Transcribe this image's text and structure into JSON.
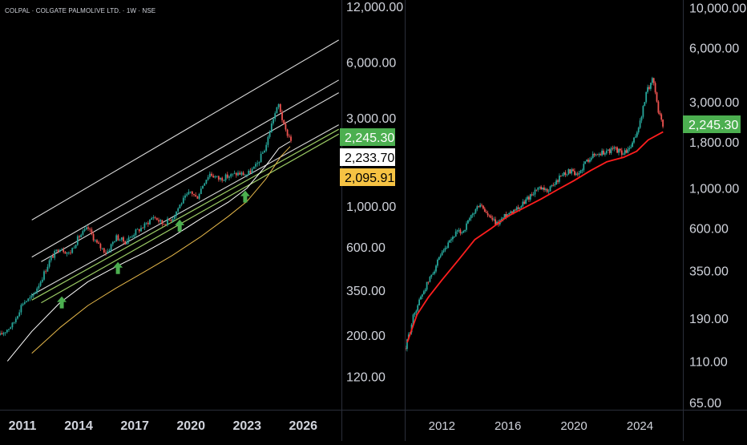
{
  "header": {
    "symbol_line": "COLPAL · COLGATE PALMOLIVE LTD. · 1W · NSE"
  },
  "colors": {
    "background": "#000000",
    "axis_text": "#d1d4dc",
    "up_candle": "#26a69a",
    "down_candle": "#ef5350",
    "price_badge": "#4caf50",
    "ma_badge": "#ffffff",
    "yellow_badge": "#f6c343",
    "channel_lines": "#d9d9d9",
    "support_line": "#9ccc65",
    "ma_red": "#ff1e1e",
    "ma_yellow": "#e6b84a",
    "arrow_green": "#4caf50"
  },
  "chart_data": [
    {
      "type": "line",
      "name": "left-panel",
      "y_scale": "log",
      "ylim": [
        80,
        13000
      ],
      "xlim": [
        2009.8,
        2028.0
      ],
      "y_ticks": [
        {
          "value": 12000,
          "label": "12,000.00"
        },
        {
          "value": 6000,
          "label": "6,000.00"
        },
        {
          "value": 3000,
          "label": "3,000.00"
        },
        {
          "value": 1000,
          "label": "1,000.00"
        },
        {
          "value": 600,
          "label": "600.00"
        },
        {
          "value": 350,
          "label": "350.00"
        },
        {
          "value": 200,
          "label": "200.00"
        },
        {
          "value": 120,
          "label": "120.00"
        }
      ],
      "x_ticks": [
        "2011",
        "2014",
        "2017",
        "2020",
        "2023",
        "2026"
      ],
      "x_tick_values": [
        2011,
        2014,
        2017,
        2020,
        2023,
        2026
      ],
      "price_badges": [
        {
          "label": "2,245.30",
          "value": 2245.3,
          "style": "green"
        },
        {
          "label": "2,233.70",
          "value": 2233.7,
          "style": "white"
        },
        {
          "label": "2,095.91",
          "value": 2095.91,
          "style": "yellow"
        }
      ],
      "price_series": {
        "x": [
          2009.8,
          2010.5,
          2011.0,
          2011.5,
          2012.0,
          2012.5,
          2013.0,
          2013.5,
          2014.0,
          2014.5,
          2015.0,
          2015.5,
          2016.0,
          2016.5,
          2017.0,
          2017.5,
          2018.0,
          2018.5,
          2019.0,
          2019.5,
          2020.0,
          2020.3,
          2020.7,
          2021.0,
          2021.5,
          2022.0,
          2022.5,
          2023.0,
          2023.5,
          2024.0,
          2024.4,
          2024.7,
          2025.0,
          2025.4
        ],
        "y": [
          200,
          230,
          300,
          320,
          400,
          520,
          600,
          550,
          680,
          760,
          620,
          560,
          680,
          640,
          720,
          780,
          880,
          800,
          860,
          1050,
          1200,
          1100,
          1350,
          1500,
          1400,
          1450,
          1500,
          1480,
          1650,
          2100,
          3000,
          3550,
          2600,
          2245
        ]
      },
      "channel_lines": [
        {
          "x": [
            2011.5,
            2027.9
          ],
          "y": [
            840,
            7900
          ]
        },
        {
          "x": [
            2011.5,
            2027.9
          ],
          "y": [
            530,
            4800
          ]
        },
        {
          "x": [
            2012.0,
            2027.9
          ],
          "y": [
            500,
            4100
          ]
        },
        {
          "x": [
            2011.5,
            2027.9
          ],
          "y": [
            330,
            2750
          ]
        }
      ],
      "support_lines": [
        {
          "x": [
            2011.5,
            2027.9
          ],
          "y": [
            310,
            2600
          ]
        },
        {
          "x": [
            2012.0,
            2027.9
          ],
          "y": [
            300,
            2450
          ]
        }
      ],
      "ma_lines": [
        {
          "style": "white",
          "x": [
            2010.2,
            2011.5,
            2013.0,
            2014.5,
            2016.0,
            2017.5,
            2019.0,
            2020.5,
            2022.0,
            2023.0,
            2024.0,
            2024.7,
            2025.3
          ],
          "y": [
            145,
            210,
            300,
            390,
            470,
            560,
            680,
            850,
            1050,
            1250,
            1650,
            2050,
            2233.7
          ]
        },
        {
          "style": "yellow",
          "x": [
            2011.5,
            2013.0,
            2014.5,
            2016.0,
            2017.5,
            2019.0,
            2020.5,
            2022.0,
            2023.0,
            2024.0,
            2024.8,
            2025.3
          ],
          "y": [
            160,
            220,
            290,
            360,
            440,
            540,
            680,
            880,
            1060,
            1400,
            1850,
            2095.91
          ]
        }
      ],
      "arrows": [
        {
          "x": 2013.1,
          "y": 300
        },
        {
          "x": 2016.1,
          "y": 460
        },
        {
          "x": 2019.4,
          "y": 780
        },
        {
          "x": 2022.9,
          "y": 1120
        }
      ]
    },
    {
      "type": "line",
      "name": "right-panel",
      "y_scale": "log",
      "ylim": [
        60,
        11000
      ],
      "xlim": [
        2009.8,
        2026.6
      ],
      "y_ticks": [
        {
          "value": 10000,
          "label": "10,000.00"
        },
        {
          "value": 6000,
          "label": "6,000.00"
        },
        {
          "value": 3000,
          "label": "3,000.00"
        },
        {
          "value": 1800,
          "label": "1,800.00"
        },
        {
          "value": 1000,
          "label": "1,000.00"
        },
        {
          "value": 600,
          "label": "600.00"
        },
        {
          "value": 350,
          "label": "350.00"
        },
        {
          "value": 190,
          "label": "190.00"
        },
        {
          "value": 110,
          "label": "110.00"
        },
        {
          "value": 65,
          "label": "65.00"
        }
      ],
      "x_ticks": [
        "2012",
        "2016",
        "2020",
        "2024"
      ],
      "x_tick_values": [
        2012,
        2016,
        2020,
        2024
      ],
      "price_badges": [
        {
          "label": "2,245.30",
          "value": 2245.3,
          "style": "green"
        }
      ],
      "price_series": {
        "x": [
          2009.8,
          2010.3,
          2010.8,
          2011.3,
          2011.8,
          2012.3,
          2012.8,
          2013.3,
          2013.8,
          2014.3,
          2014.8,
          2015.3,
          2015.8,
          2016.3,
          2016.8,
          2017.3,
          2017.8,
          2018.3,
          2018.8,
          2019.3,
          2019.8,
          2020.2,
          2020.6,
          2021.0,
          2021.5,
          2022.0,
          2022.5,
          2023.0,
          2023.5,
          2024.0,
          2024.4,
          2024.8,
          2025.1,
          2025.4
        ],
        "y": [
          130,
          200,
          260,
          320,
          400,
          470,
          560,
          580,
          700,
          820,
          700,
          630,
          700,
          760,
          800,
          900,
          1000,
          960,
          1050,
          1200,
          1250,
          1150,
          1350,
          1500,
          1550,
          1600,
          1650,
          1550,
          1700,
          2300,
          3400,
          4100,
          2700,
          2245
        ]
      },
      "ma_red": {
        "x": [
          2009.9,
          2010.5,
          2011.2,
          2012.0,
          2013.0,
          2014.0,
          2015.0,
          2016.0,
          2017.0,
          2018.0,
          2019.0,
          2020.0,
          2021.0,
          2022.0,
          2023.0,
          2023.8,
          2024.5,
          2025.4
        ],
        "y": [
          140,
          200,
          250,
          310,
          400,
          520,
          600,
          700,
          780,
          870,
          980,
          1100,
          1250,
          1400,
          1480,
          1600,
          1850,
          2050
        ]
      }
    }
  ]
}
